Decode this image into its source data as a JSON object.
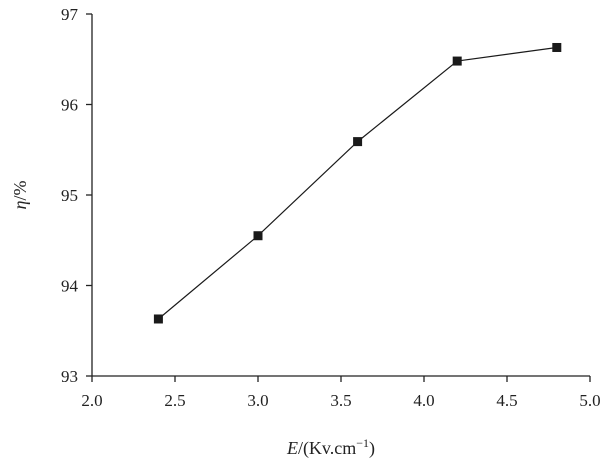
{
  "chart_data": {
    "type": "line",
    "x": [
      2.4,
      3.0,
      3.6,
      4.2,
      4.8
    ],
    "series": [
      {
        "values": [
          93.63,
          94.55,
          95.59,
          96.48,
          96.63
        ],
        "marker": "square",
        "color": "#1a1a1a"
      }
    ],
    "xlim": [
      2.0,
      5.0
    ],
    "ylim": [
      93,
      97
    ],
    "xticks": [
      "2.0",
      "2.5",
      "3.0",
      "3.5",
      "4.0",
      "4.5",
      "5.0"
    ],
    "yticks": [
      "93",
      "94",
      "95",
      "96",
      "97"
    ],
    "xlabel": {
      "var": "E",
      "rest": "/(Kv.cm",
      "sup": "−1",
      "close": ")"
    },
    "ylabel": {
      "var": "η",
      "rest": "/%"
    },
    "grid": false,
    "legend": false
  }
}
